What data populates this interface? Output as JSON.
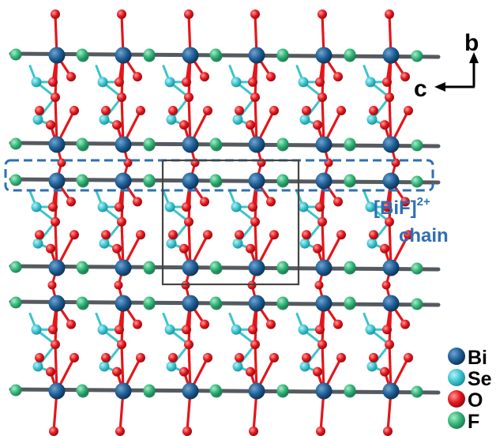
{
  "axes": {
    "b": "b",
    "c": "c"
  },
  "chain_label": {
    "line1": "[BiF]",
    "sup": "2+",
    "line2": "chain"
  },
  "legend": [
    {
      "symbol": "Bi",
      "color": "#1f5f95"
    },
    {
      "symbol": "Se",
      "color": "#3cc4cf"
    },
    {
      "symbol": "O",
      "color": "#e3161b"
    },
    {
      "symbol": "F",
      "color": "#34b67a"
    }
  ],
  "colors": {
    "bi": "#1f5f95",
    "se": "#3cc4cf",
    "o": "#e3161b",
    "f": "#34b67a",
    "bi_f_bond": "#555a60",
    "chain_highlight": "#2e6fb3",
    "unit_cell": "#444444"
  }
}
